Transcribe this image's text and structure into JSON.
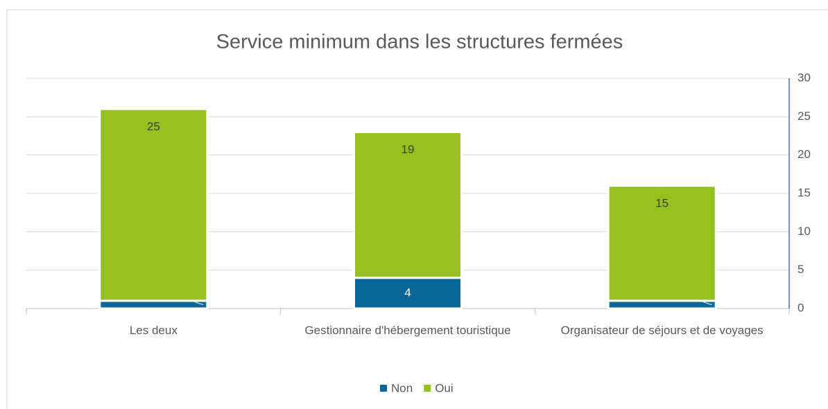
{
  "chart_data": {
    "type": "stacked_bar",
    "title": "Service minimum dans les structures fermées",
    "categories": [
      "Les deux",
      "Gestionnaire d'hébergement touristique",
      "Organisateur de séjours et de voyages"
    ],
    "series": [
      {
        "name": "Non",
        "color": "#0b6699",
        "values": [
          1,
          4,
          1
        ]
      },
      {
        "name": "Oui",
        "color": "#95c11f",
        "values": [
          25,
          19,
          15
        ]
      }
    ],
    "ylim": [
      0,
      30
    ],
    "yticks": [
      0,
      5,
      10,
      15,
      20,
      25,
      30
    ],
    "y_axis_side": "right",
    "grid": true,
    "legend": "bottom"
  }
}
